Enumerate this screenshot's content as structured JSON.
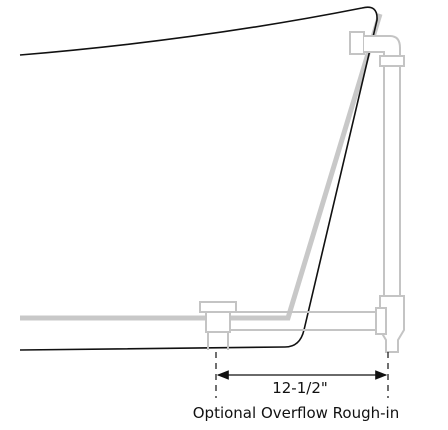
{
  "dimension": {
    "label": "12-1/2\""
  },
  "caption": "Optional Overflow Rough-in"
}
